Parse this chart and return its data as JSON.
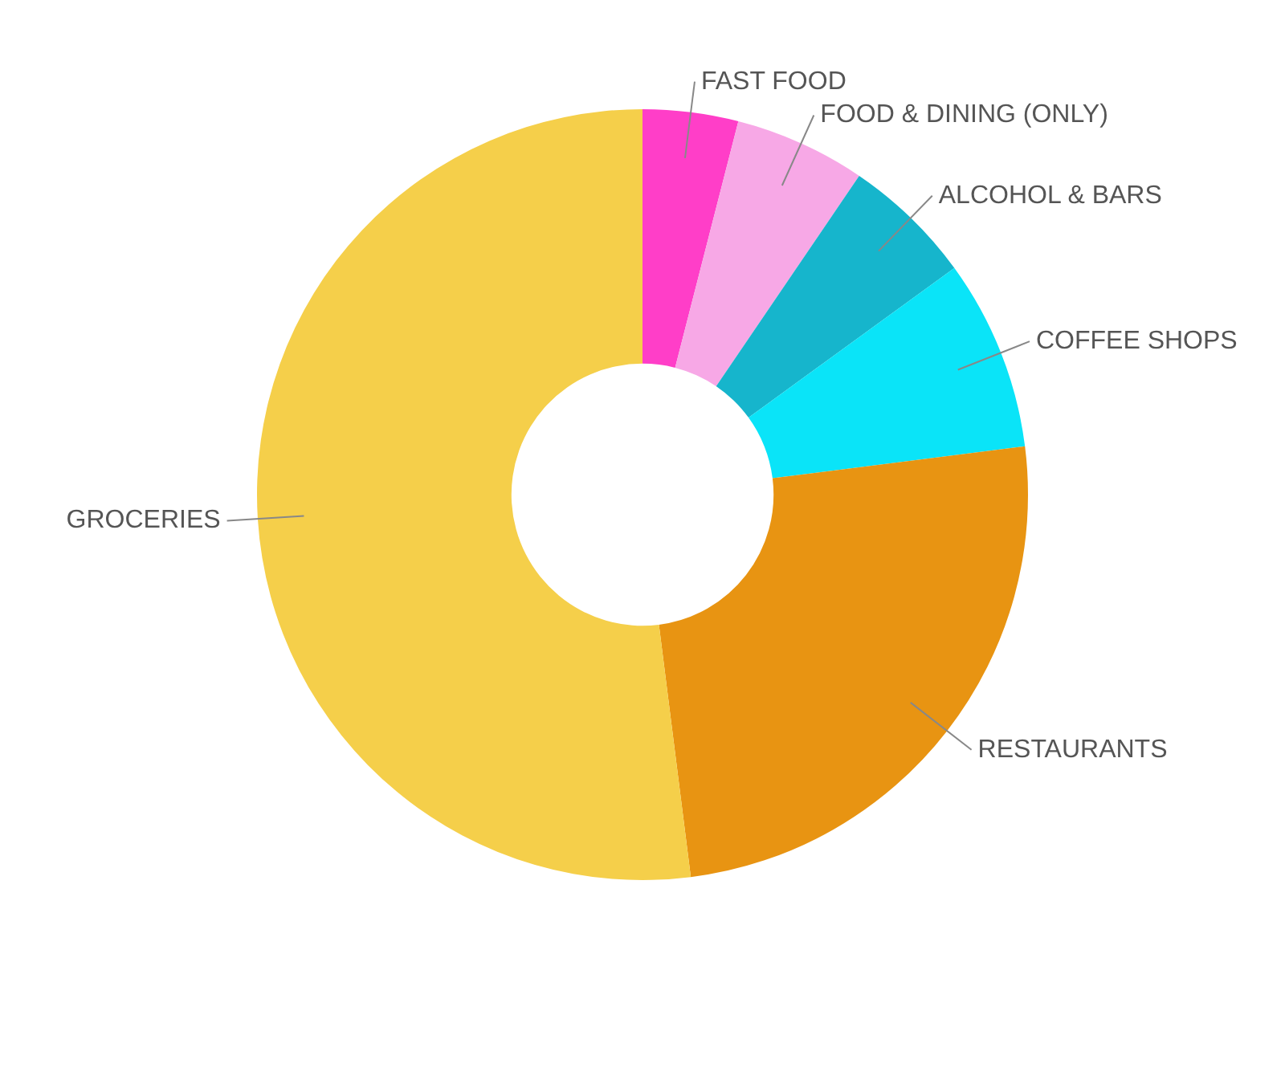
{
  "chart_data": {
    "type": "donut",
    "categories": [
      "FAST FOOD",
      "FOOD & DINING (ONLY)",
      "ALCOHOL & BARS",
      "COFFEE SHOPS",
      "RESTAURANTS",
      "GROCERIES"
    ],
    "values": [
      4,
      5.5,
      5.5,
      8,
      25,
      52
    ],
    "colors": [
      "#ff3ec8",
      "#f7a8e6",
      "#16b5cc",
      "#0ae4f8",
      "#e89412",
      "#f5cf4a"
    ],
    "legend": false
  }
}
